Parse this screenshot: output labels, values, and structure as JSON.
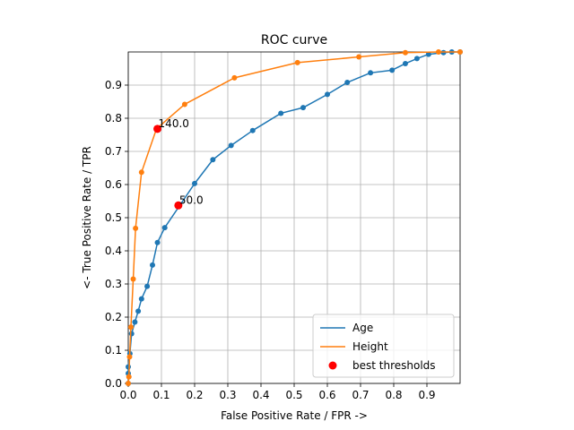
{
  "chart_data": {
    "type": "line",
    "title": "ROC curve",
    "xlabel": "False Positive Rate / FPR ->",
    "ylabel": "<- True Positive Rate / TPR",
    "xlim": [
      0,
      1
    ],
    "ylim": [
      0,
      1
    ],
    "grid": true,
    "legend_placement": "lower-right",
    "xticks": [
      0.0,
      0.1,
      0.2,
      0.3,
      0.4,
      0.5,
      0.6,
      0.7,
      0.8,
      0.9
    ],
    "yticks": [
      0.0,
      0.1,
      0.2,
      0.3,
      0.4,
      0.5,
      0.6,
      0.7,
      0.8,
      0.9
    ],
    "series": [
      {
        "name": "Age",
        "color": "#1f77b4",
        "x": [
          0.0,
          0.0,
          0.0,
          0.005,
          0.01,
          0.02,
          0.03,
          0.04,
          0.057,
          0.073,
          0.088,
          0.11,
          0.2,
          0.255,
          0.31,
          0.375,
          0.46,
          0.527,
          0.6,
          0.66,
          0.73,
          0.795,
          0.835,
          0.87,
          0.905,
          0.95,
          0.975,
          1.0
        ],
        "y": [
          0.0,
          0.03,
          0.05,
          0.09,
          0.15,
          0.185,
          0.218,
          0.255,
          0.293,
          0.357,
          0.425,
          0.47,
          0.603,
          0.675,
          0.718,
          0.763,
          0.815,
          0.832,
          0.872,
          0.908,
          0.937,
          0.945,
          0.965,
          0.98,
          0.993,
          0.998,
          1.0,
          1.0
        ]
      },
      {
        "name": "Height",
        "color": "#ff7f0e",
        "x": [
          0.0,
          0.002,
          0.004,
          0.008,
          0.015,
          0.022,
          0.04,
          0.085,
          0.17,
          0.32,
          0.51,
          0.695,
          0.835,
          0.935,
          1.0
        ],
        "y": [
          0.0,
          0.02,
          0.08,
          0.17,
          0.315,
          0.468,
          0.637,
          0.768,
          0.842,
          0.922,
          0.968,
          0.985,
          0.998,
          1.0,
          1.0
        ]
      }
    ],
    "best_thresholds": {
      "name": "best thresholds",
      "color": "#ff0000",
      "points": [
        {
          "x": 0.088,
          "y": 0.768,
          "label": "140.0"
        },
        {
          "x": 0.151,
          "y": 0.537,
          "label": "50.0"
        }
      ]
    }
  }
}
